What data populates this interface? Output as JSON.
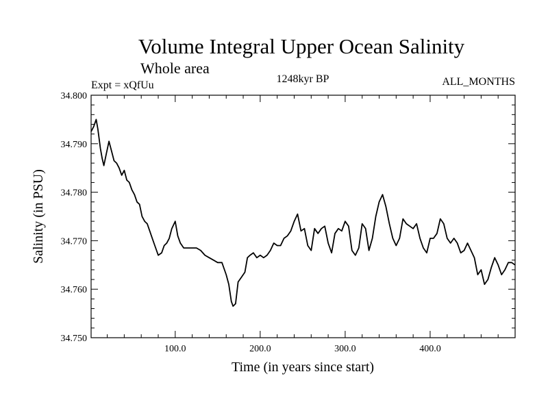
{
  "chart_data": {
    "type": "line",
    "title": "Volume Integral Upper Ocean Salinity",
    "subtitle": "Whole area",
    "left_label": "Expt = xQfUu",
    "center_label": "1248kyr BP",
    "right_label": "ALL_MONTHS",
    "xlabel": "Time (in years since start)",
    "ylabel": "Salinity (in PSU)",
    "xlim": [
      1,
      500
    ],
    "ylim": [
      34.75,
      34.8
    ],
    "x_ticks": [
      100,
      200,
      300,
      400
    ],
    "x_tick_labels": [
      "100.0",
      "200.0",
      "300.0",
      "400.0"
    ],
    "y_ticks": [
      34.75,
      34.76,
      34.77,
      34.78,
      34.79,
      34.8
    ],
    "y_tick_labels": [
      "34.750",
      "34.760",
      "34.770",
      "34.780",
      "34.790",
      "34.800"
    ],
    "grid": false,
    "series": [
      {
        "name": "salinity",
        "x": [
          1,
          4,
          7,
          9,
          12,
          14,
          16,
          19,
          22,
          25,
          28,
          31,
          34,
          37,
          40,
          43,
          46,
          49,
          52,
          55,
          58,
          61,
          64,
          67,
          70,
          73,
          76,
          80,
          84,
          87,
          90,
          93,
          96,
          100,
          103,
          106,
          110,
          115,
          120,
          125,
          130,
          135,
          140,
          145,
          150,
          155,
          160,
          163,
          166,
          168,
          171,
          174,
          178,
          182,
          185,
          188,
          192,
          196,
          200,
          204,
          208,
          212,
          216,
          220,
          224,
          228,
          232,
          236,
          240,
          244,
          248,
          252,
          256,
          260,
          264,
          268,
          272,
          276,
          280,
          284,
          288,
          292,
          296,
          300,
          304,
          308,
          312,
          316,
          320,
          324,
          328,
          332,
          336,
          340,
          344,
          348,
          352,
          356,
          360,
          364,
          368,
          372,
          376,
          380,
          384,
          388,
          392,
          396,
          400,
          404,
          408,
          412,
          416,
          420,
          424,
          428,
          432,
          436,
          440,
          444,
          448,
          452,
          456,
          460,
          464,
          468,
          472,
          476,
          480,
          484,
          488,
          492,
          496,
          500
        ],
        "values": [
          34.7925,
          34.7935,
          34.795,
          34.793,
          34.789,
          34.787,
          34.7855,
          34.788,
          34.7905,
          34.7885,
          34.7865,
          34.786,
          34.785,
          34.7835,
          34.7845,
          34.7825,
          34.782,
          34.7805,
          34.7795,
          34.778,
          34.7775,
          34.775,
          34.774,
          34.7735,
          34.772,
          34.7705,
          34.769,
          34.767,
          34.7675,
          34.769,
          34.7695,
          34.7705,
          34.7725,
          34.774,
          34.771,
          34.7695,
          34.7685,
          34.7685,
          34.7685,
          34.7685,
          34.768,
          34.767,
          34.7665,
          34.766,
          34.7655,
          34.7655,
          34.763,
          34.761,
          34.7575,
          34.7565,
          34.757,
          34.7615,
          34.7625,
          34.7635,
          34.7665,
          34.767,
          34.7675,
          34.7665,
          34.767,
          34.7665,
          34.767,
          34.768,
          34.7695,
          34.769,
          34.769,
          34.7705,
          34.771,
          34.772,
          34.774,
          34.7755,
          34.772,
          34.7725,
          34.769,
          34.768,
          34.7725,
          34.7715,
          34.7725,
          34.773,
          34.7695,
          34.7675,
          34.7715,
          34.7725,
          34.772,
          34.774,
          34.773,
          34.768,
          34.767,
          34.7685,
          34.7735,
          34.7725,
          34.768,
          34.7705,
          34.775,
          34.778,
          34.7795,
          34.777,
          34.7735,
          34.7705,
          34.769,
          34.7705,
          34.7745,
          34.7735,
          34.773,
          34.7725,
          34.7735,
          34.7705,
          34.7685,
          34.7675,
          34.7705,
          34.7705,
          34.7715,
          34.7745,
          34.7735,
          34.7705,
          34.7695,
          34.7705,
          34.7695,
          34.7675,
          34.768,
          34.7695,
          34.768,
          34.7665,
          34.763,
          34.764,
          34.761,
          34.762,
          34.7645,
          34.7665,
          34.765,
          34.763,
          34.764,
          34.7655,
          34.7655,
          34.765
        ]
      }
    ]
  }
}
